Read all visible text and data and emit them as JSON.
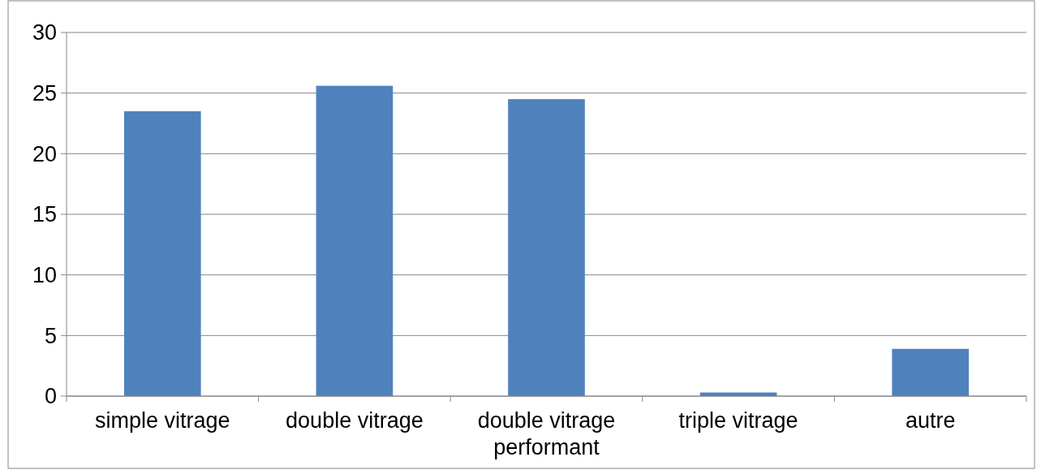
{
  "chart_data": {
    "type": "bar",
    "categories": [
      "simple vitrage",
      "double vitrage",
      "double vitrage performant",
      "triple vitrage",
      "autre"
    ],
    "values": [
      23.5,
      25.6,
      24.5,
      0.3,
      3.9
    ],
    "color": "#4f81bd",
    "ylim": [
      0,
      30
    ],
    "yticks": [
      0,
      5,
      10,
      15,
      20,
      25,
      30
    ],
    "grid": "y"
  }
}
